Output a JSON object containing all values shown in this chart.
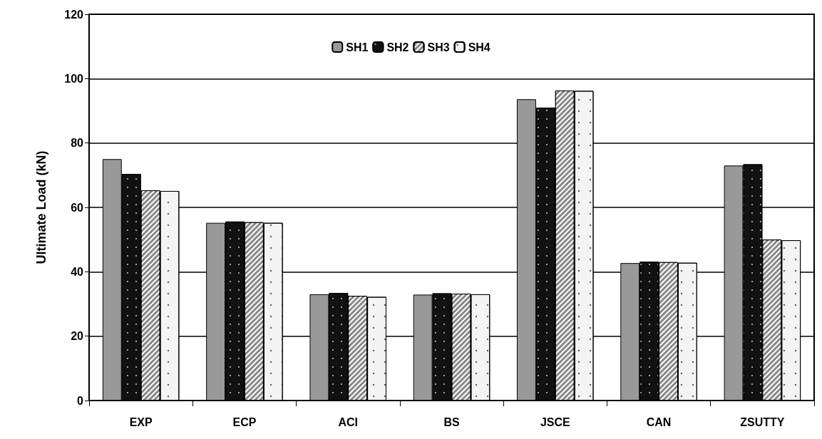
{
  "chart_data": {
    "type": "bar",
    "ylabel": "Ultimate Load (kN)",
    "categories": [
      "EXP",
      "ECP",
      "ACI",
      "BS",
      "JSCE",
      "CAN",
      "ZSUTTY"
    ],
    "series": [
      {
        "name": "SH1",
        "color": "#999999",
        "values": [
          75,
          55.2,
          33.0,
          32.9,
          93.6,
          42.7,
          73.0
        ]
      },
      {
        "name": "SH2",
        "color": "#111111",
        "values": [
          70.4,
          55.6,
          33.4,
          33.3,
          91.0,
          43.1,
          73.4
        ]
      },
      {
        "name": "SH3",
        "color": "#888888",
        "values": [
          65.3,
          55.4,
          32.5,
          33.2,
          96.3,
          43.0,
          50.0
        ]
      },
      {
        "name": "SH4",
        "color": "#f4f4f4",
        "values": [
          65.1,
          55.2,
          32.2,
          33.0,
          96.2,
          42.8,
          49.8
        ]
      }
    ],
    "ylim": [
      0,
      120
    ],
    "yticks": [
      0,
      20,
      40,
      60,
      80,
      100,
      120
    ],
    "grid": "y",
    "legend": "top"
  }
}
